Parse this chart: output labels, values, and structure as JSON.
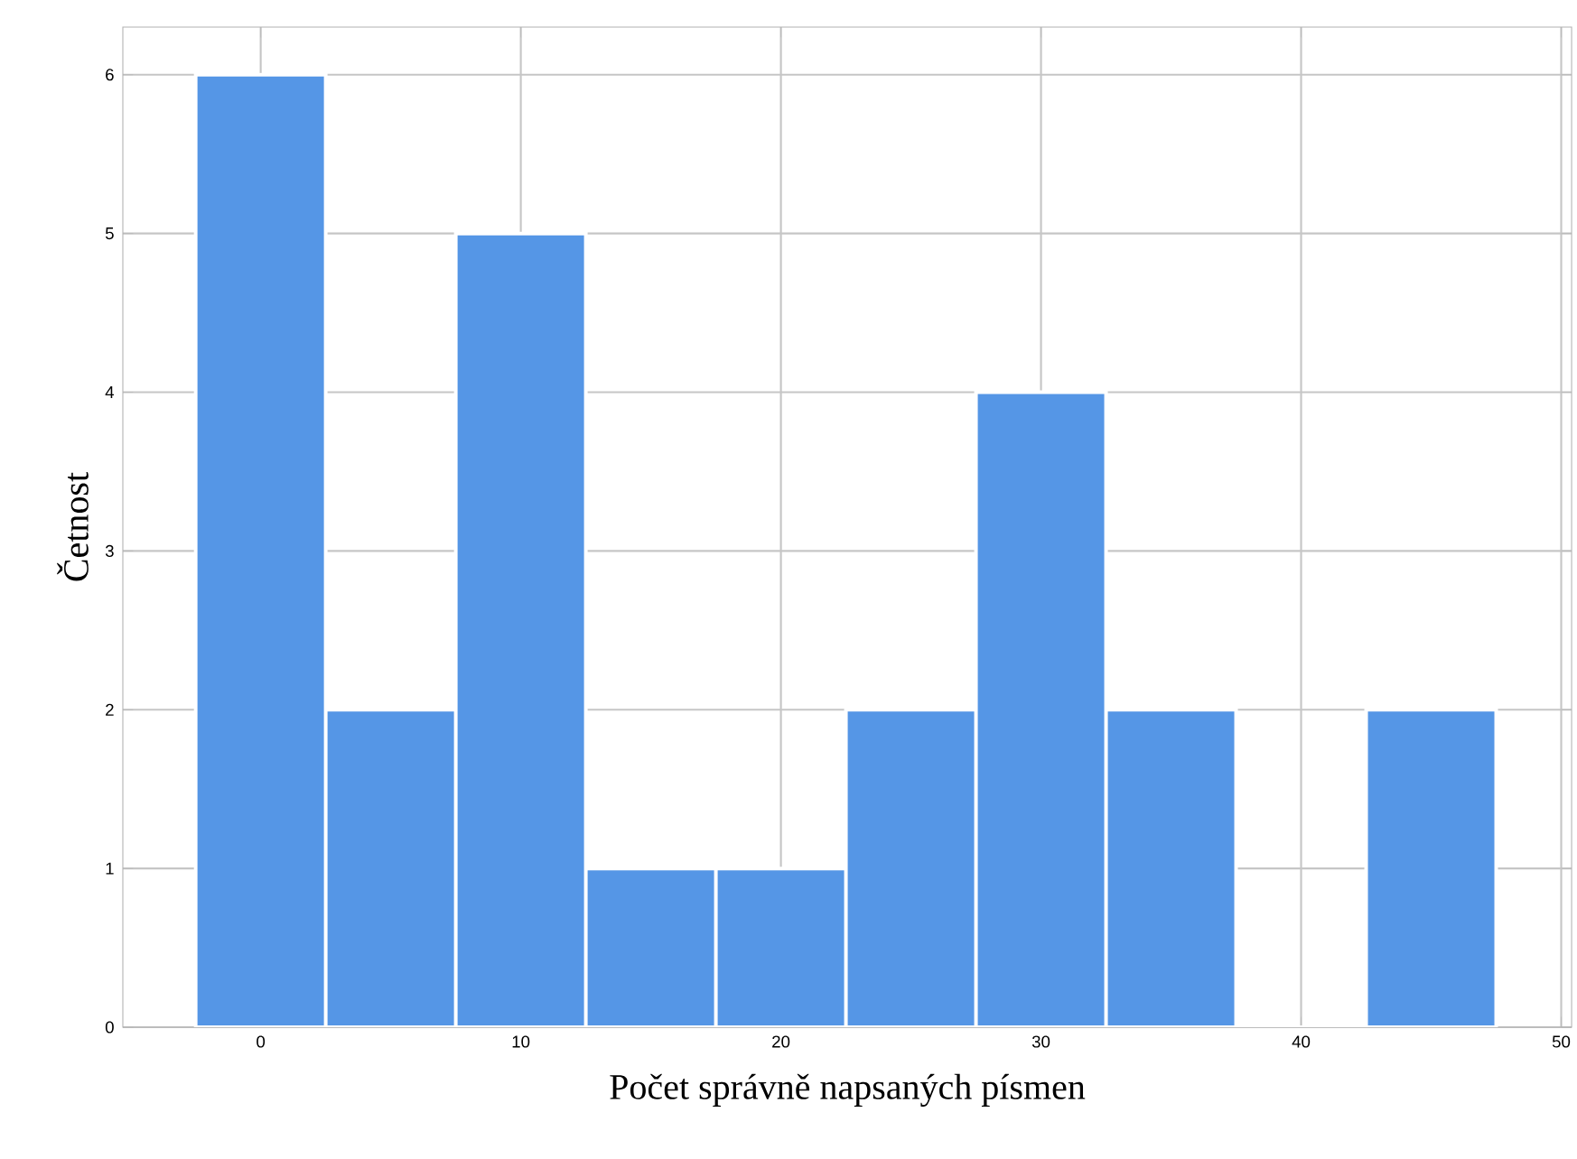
{
  "chart_data": {
    "type": "histogram",
    "xlabel": "Počet správně napsaných písmen",
    "ylabel": "Četnost",
    "bins": [
      -2.5,
      2.5,
      7.5,
      12.5,
      17.5,
      22.5,
      27.5,
      32.5,
      37.5,
      42.5,
      47.5
    ],
    "values": [
      6,
      2,
      5,
      1,
      1,
      2,
      4,
      2,
      0,
      2
    ],
    "color": "#5596e6",
    "xlim": [
      -5.3,
      50.4
    ],
    "ylim": [
      0,
      6.3
    ],
    "xticks": [
      0,
      10,
      20,
      30,
      40,
      50
    ],
    "yticks": [
      0,
      1,
      2,
      3,
      4,
      5,
      6
    ],
    "grid": true
  }
}
